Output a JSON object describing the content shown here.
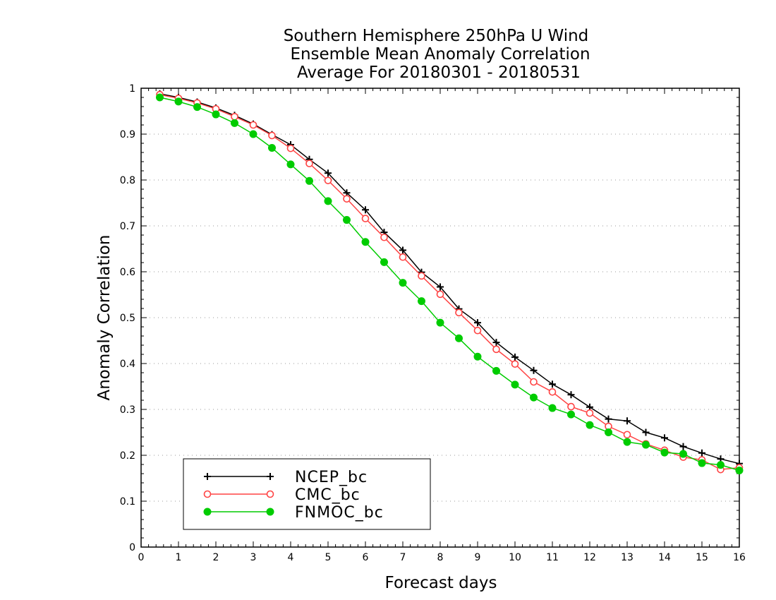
{
  "chart_data": {
    "type": "line",
    "title": [
      "Southern Hemisphere 250hPa U Wind",
      "Ensemble Mean Anomaly Correlation",
      "Average For 20180301 - 20180531"
    ],
    "xlabel": "Forecast days",
    "ylabel": "Anomaly Correlation",
    "xlim": [
      0,
      16
    ],
    "ylim": [
      0,
      1
    ],
    "x_ticks": [
      "0",
      "1",
      "2",
      "3",
      "4",
      "5",
      "6",
      "7",
      "8",
      "9",
      "10",
      "11",
      "12",
      "13",
      "14",
      "15",
      "16"
    ],
    "y_ticks": [
      "0",
      "0.1",
      "0.2",
      "0.3",
      "0.4",
      "0.5",
      "0.6",
      "0.7",
      "0.8",
      "0.9",
      "1"
    ],
    "grid": "horizontal dotted",
    "legend_position": "bottom-left",
    "x": [
      0.5,
      1,
      1.5,
      2,
      2.5,
      3,
      3.5,
      4,
      4.5,
      5,
      5.5,
      6,
      6.5,
      7,
      7.5,
      8,
      8.5,
      9,
      9.5,
      10,
      10.5,
      11,
      11.5,
      12,
      12.5,
      13,
      13.5,
      14,
      14.5,
      15,
      15.5,
      16
    ],
    "series": [
      {
        "name": "NCEP_bc",
        "color": "#000000",
        "marker": "plus",
        "values": [
          0.988,
          0.98,
          0.97,
          0.957,
          0.941,
          0.922,
          0.899,
          0.877,
          0.845,
          0.815,
          0.772,
          0.735,
          0.686,
          0.647,
          0.599,
          0.567,
          0.519,
          0.489,
          0.446,
          0.414,
          0.385,
          0.355,
          0.332,
          0.305,
          0.279,
          0.275,
          0.25,
          0.238,
          0.219,
          0.205,
          0.192,
          0.182
        ]
      },
      {
        "name": "CMC_bc",
        "color": "#ff4444",
        "marker": "open-circle",
        "values": [
          0.986,
          0.978,
          0.968,
          0.955,
          0.938,
          0.92,
          0.897,
          0.869,
          0.836,
          0.799,
          0.759,
          0.716,
          0.675,
          0.632,
          0.591,
          0.551,
          0.511,
          0.472,
          0.431,
          0.399,
          0.36,
          0.338,
          0.306,
          0.292,
          0.263,
          0.245,
          0.225,
          0.211,
          0.196,
          0.19,
          0.169,
          0.173
        ]
      },
      {
        "name": "FNMOC_bc",
        "color": "#00cc00",
        "marker": "filled-circle",
        "values": [
          0.98,
          0.971,
          0.959,
          0.943,
          0.924,
          0.9,
          0.87,
          0.834,
          0.798,
          0.754,
          0.713,
          0.665,
          0.621,
          0.576,
          0.536,
          0.489,
          0.455,
          0.415,
          0.384,
          0.354,
          0.326,
          0.303,
          0.289,
          0.266,
          0.25,
          0.229,
          0.223,
          0.206,
          0.203,
          0.183,
          0.179,
          0.167
        ]
      }
    ]
  }
}
